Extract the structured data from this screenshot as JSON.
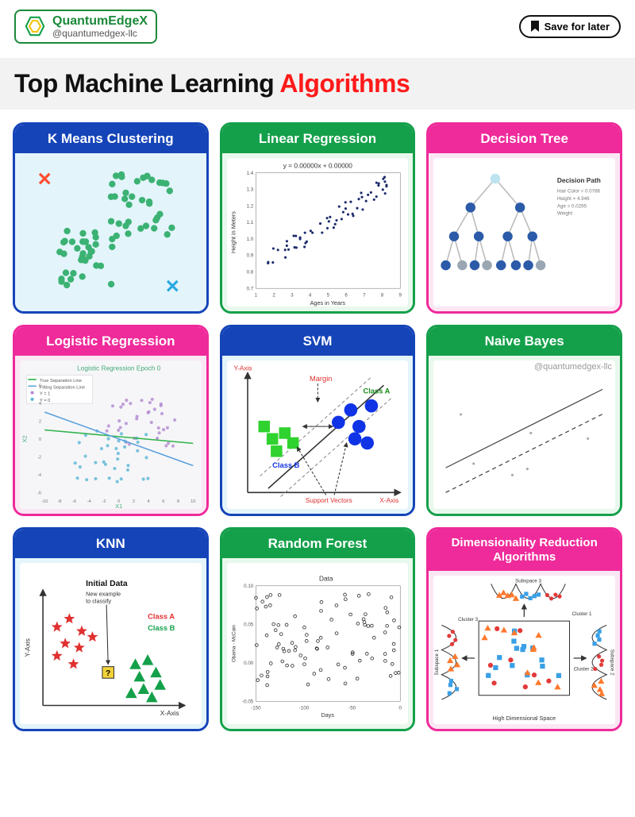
{
  "brand": {
    "name": "QuantumEdgeX",
    "handle": "@quantumedgex-llc"
  },
  "save_label": "Save for later",
  "title_main": "Top Machine Learning ",
  "title_accent": "Algorithms",
  "colors": {
    "blue": "#1544b8",
    "green": "#14a04a",
    "pink": "#ef2a9a",
    "accent_red": "#ff1a1a"
  },
  "cards": {
    "kmeans": {
      "title": "K Means Clustering",
      "color": "blue",
      "type": "scatter",
      "dot_color": "#3bb273",
      "x1_color": "#ff4d2e",
      "x2_color": "#2aa9e0"
    },
    "linreg": {
      "title": "Linear Regression",
      "color": "green",
      "type": "scatter",
      "equation": "y = 0.00000x + 0.00000",
      "xlabel": "Ages in Years",
      "ylabel": "Height in Meters",
      "xlim": [
        1,
        9
      ],
      "ylim": [
        0.7,
        1.4
      ],
      "dot_color": "#1b2a6b"
    },
    "dtree": {
      "title": "Decision Tree",
      "color": "pink",
      "type": "tree",
      "legend_title": "Decision Path",
      "legend_lines": [
        "Hair Color = 0.0786",
        "Height = 4.946",
        "Age = 0.0295",
        "Weight"
      ],
      "node_color": "#2b5aa8",
      "node_alt_color": "#9aa7b3",
      "root_color": "#bce3f0"
    },
    "logreg": {
      "title": "Logistic Regression",
      "color": "pink",
      "type": "scatter-lines",
      "plot_title": "Logistic Regression Epoch 0",
      "legend": [
        "True Separation Line",
        "Fitting Separation Line",
        "Y = 1",
        "Y = 0"
      ],
      "xlabel": "X1",
      "ylabel": "X2",
      "xlim": [
        -10,
        10
      ],
      "ylim": [
        -6,
        6
      ],
      "c1_color": "#b38ad1",
      "c0_color": "#5bb7d6",
      "true_line_color": "#2eb34a",
      "fit_line_color": "#5aa0dd"
    },
    "svm": {
      "title": "SVM",
      "color": "blue",
      "type": "diagram",
      "labels": {
        "yaxis": "Y-Axis",
        "xaxis": "X-Axis",
        "margin": "Margin",
        "classA": "Class A",
        "classB": "Class B",
        "sv": "Support Vectors"
      },
      "colorA": "#1033e6",
      "colorB": "#2fd22f",
      "text_red": "#e03030"
    },
    "nbayes": {
      "title": "Naive Bayes",
      "color": "green",
      "type": "lines",
      "watermark": "@quantumedgex-llc",
      "line_color": "#444"
    },
    "knn": {
      "title": "KNN",
      "color": "blue",
      "type": "diagram",
      "labels": {
        "initial": "Initial Data",
        "newex": "New example\nto classify",
        "classA": "Class A",
        "classB": "Class B",
        "xaxis": "X-Axis",
        "yaxis": "Y-Axis"
      },
      "star_color": "#e03030",
      "tri_color": "#14a04a",
      "q_bg": "#f4d33a",
      "text_red": "#e03030",
      "text_green": "#14a04a"
    },
    "rforest": {
      "title": "Random Forest",
      "color": "green",
      "type": "scatter",
      "plot_title": "Data",
      "xlabel": "Days",
      "ylabel": "Obama - McCain",
      "xlim": [
        -150,
        0
      ],
      "ylim": [
        -0.05,
        0.1
      ],
      "dot_color": "#333"
    },
    "dimred": {
      "title": "Dimensionality Reduction Algorithms",
      "color": "pink",
      "type": "diagram",
      "labels": {
        "s1": "Subspace 1",
        "s2": "Subspace 2",
        "s3": "Subspace 3",
        "c1": "Cluster 1",
        "c2": "Cluster 2",
        "c3": "Cluster 3",
        "hds": "High Dimensional Space"
      },
      "sq_color": "#3aa0e6",
      "tri_color": "#ff7a2e",
      "dot_color": "#e23a3a"
    }
  }
}
